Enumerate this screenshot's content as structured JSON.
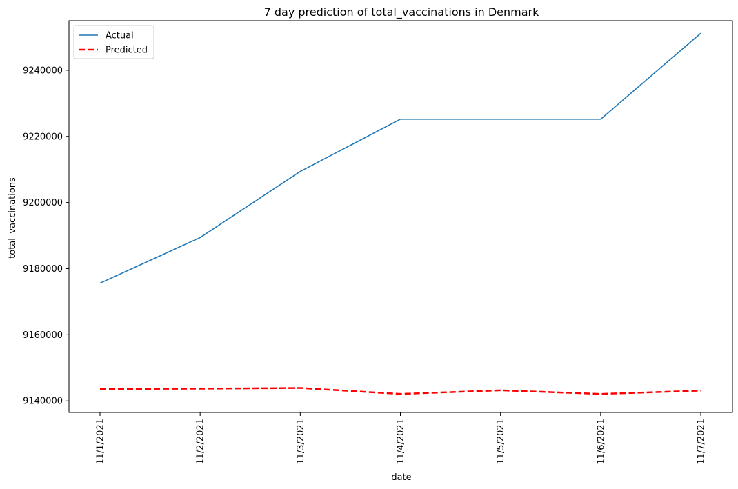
{
  "chart_data": {
    "type": "line",
    "title": "7 day prediction of total_vaccinations in Denmark",
    "xlabel": "date",
    "ylabel": "total_vaccinations",
    "x": [
      "11/1/2021",
      "11/2/2021",
      "11/3/2021",
      "11/4/2021",
      "11/5/2021",
      "11/6/2021",
      "11/7/2021"
    ],
    "ylim": [
      9136500,
      9255000
    ],
    "yticks": [
      9140000,
      9160000,
      9180000,
      9200000,
      9220000,
      9240000
    ],
    "ytick_labels": [
      "9140000",
      "9160000",
      "9180000",
      "9200000",
      "9220000",
      "9240000"
    ],
    "grid": false,
    "legend_position": "top-left",
    "series": [
      {
        "name": "Actual",
        "color": "#1f77b4",
        "style": "solid",
        "values": [
          9175600,
          9189400,
          9209400,
          9225200,
          9225200,
          9225200,
          9251200
        ]
      },
      {
        "name": "Predicted",
        "color": "#ff0000",
        "style": "dashed",
        "values": [
          9143600,
          9143700,
          9143900,
          9142100,
          9143200,
          9142100,
          9143100
        ]
      }
    ]
  }
}
